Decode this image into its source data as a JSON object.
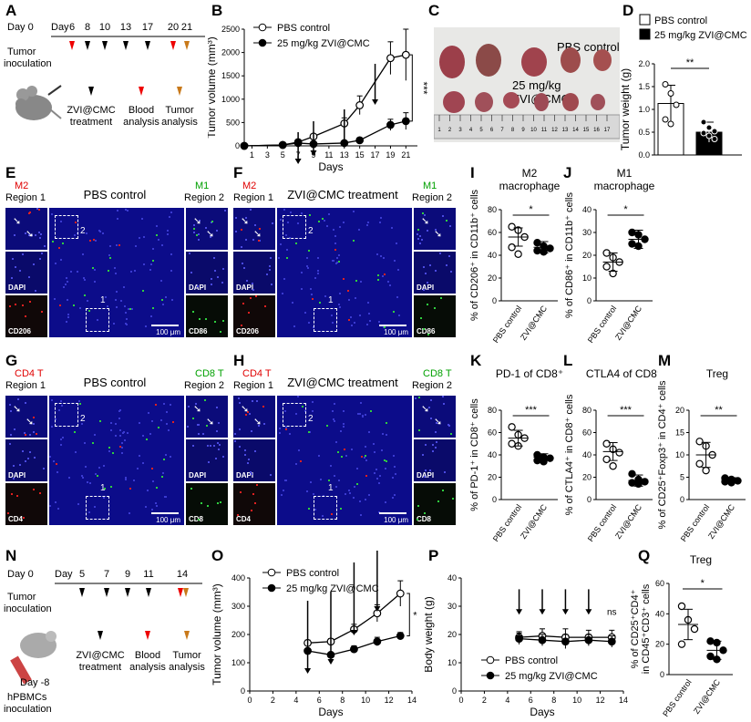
{
  "panels": {
    "A": "A",
    "B": "B",
    "C": "C",
    "D": "D",
    "E": "E",
    "F": "F",
    "G": "G",
    "H": "H",
    "I": "I",
    "J": "J",
    "K": "K",
    "L": "L",
    "M": "M",
    "N": "N",
    "O": "O",
    "P": "P",
    "Q": "Q"
  },
  "panelA": {
    "day0": "Day 0",
    "day_label": "Day",
    "days": [
      "6",
      "8",
      "10",
      "13",
      "17",
      "20",
      "21"
    ],
    "tumor_inoc": "Tumor\ninoculation",
    "legend": [
      "ZVI@CMC\ntreatment",
      "Blood\nanalysis",
      "Tumor\nanalysis"
    ]
  },
  "panelN": {
    "day0": "Day 0",
    "day_label": "Day",
    "days": [
      "5",
      "7",
      "9",
      "11",
      "14"
    ],
    "tumor_inoc": "Tumor\ninoculation",
    "day_minus": "Day -8",
    "hpbmc": "hPBMCs\ninoculation",
    "legend": [
      "ZVI@CMC\ntreatment",
      "Blood\nanalysis",
      "Tumor\nanalysis"
    ]
  },
  "panelC": {
    "label1": "PBS control",
    "label2": "25 mg/kg ZVI@CMC",
    "ruler_numbers": [
      "1",
      "2",
      "3",
      "4",
      "5",
      "6",
      "7",
      "8",
      "9",
      "10",
      "11",
      "12",
      "13",
      "14",
      "15",
      "16",
      "17"
    ]
  },
  "micro": {
    "E": {
      "title": "PBS control",
      "left": [
        "M2",
        "Region 1"
      ],
      "right": [
        "M1",
        "Region 2"
      ],
      "dapi": "DAPI",
      "cl": "CD206",
      "cr": "CD86",
      "scale": "100 μm",
      "r1": "1",
      "r2": "2"
    },
    "F": {
      "title": "ZVI@CMC treatment",
      "left": [
        "M2",
        "Region 1"
      ],
      "right": [
        "M1",
        "Region 2"
      ],
      "dapi": "DAPI",
      "cl": "CD206",
      "cr": "CD86",
      "scale": "100 μm",
      "r1": "1",
      "r2": "2"
    },
    "G": {
      "title": "PBS control",
      "left": [
        "CD4 T",
        "Region 1"
      ],
      "right": [
        "CD8 T",
        "Region 2"
      ],
      "dapi": "DAPI",
      "cl": "CD4",
      "cr": "CD8",
      "scale": "100 μm",
      "r1": "1",
      "r2": "2"
    },
    "H": {
      "title": "ZVI@CMC treatment",
      "left": [
        "CD4 T",
        "Region 1"
      ],
      "right": [
        "CD8 T",
        "Region 2"
      ],
      "dapi": "DAPI",
      "cl": "CD4",
      "cr": "CD8",
      "scale": "100 μm",
      "r1": "1",
      "r2": "2"
    }
  },
  "chart_data": [
    {
      "id": "B",
      "type": "line",
      "xlabel": "Days",
      "ylabel": "Tumor volume (mm³)",
      "xticks": [
        1,
        3,
        5,
        7,
        9,
        11,
        13,
        15,
        17,
        19,
        21
      ],
      "yticks": [
        0,
        500,
        1000,
        1500,
        2000,
        2500
      ],
      "xlim": [
        0,
        22.5
      ],
      "ylim": [
        0,
        2500
      ],
      "significance": "***",
      "arrows_at": [
        7,
        9,
        13,
        17
      ],
      "series": [
        {
          "name": "PBS control",
          "marker": "open",
          "x": [
            0,
            5,
            7,
            9,
            13,
            15,
            19,
            21
          ],
          "y": [
            0,
            20,
            80,
            200,
            480,
            870,
            1880,
            1950
          ],
          "err": [
            0,
            5,
            20,
            50,
            120,
            200,
            350,
            550
          ]
        },
        {
          "name": "25 mg/kg ZVI@CMC",
          "marker": "filled",
          "x": [
            0,
            5,
            7,
            9,
            13,
            15,
            19,
            21
          ],
          "y": [
            0,
            20,
            60,
            40,
            60,
            120,
            450,
            530
          ],
          "err": [
            0,
            5,
            15,
            10,
            20,
            40,
            120,
            180
          ]
        }
      ]
    },
    {
      "id": "D",
      "type": "bar",
      "ylabel": "Tumor weight (g)",
      "yticks": [
        0.0,
        0.5,
        1.0,
        1.5,
        2.0
      ],
      "ylim": [
        0,
        2.0
      ],
      "significance": "**",
      "legend": [
        "PBS control",
        "25 mg/kg ZVI@CMC"
      ],
      "bars": [
        {
          "name": "PBS control",
          "mean": 1.13,
          "err": 0.4,
          "points": [
            1.55,
            1.35,
            1.1,
            0.78,
            0.68
          ]
        },
        {
          "name": "25 mg/kg ZVI@CMC",
          "mean": 0.5,
          "err": 0.22,
          "points": [
            0.72,
            0.6,
            0.52,
            0.48,
            0.42,
            0.35
          ]
        }
      ]
    },
    {
      "id": "I",
      "type": "scatter",
      "title": [
        "M2",
        "macrophage"
      ],
      "ylabel": "% of CD206⁺ in CD11b⁺ cells",
      "yticks": [
        0,
        20,
        40,
        60,
        80
      ],
      "ylim": [
        0,
        80
      ],
      "significance": "*",
      "categories": [
        "PBS control",
        "ZVI@CMC"
      ],
      "groups": [
        {
          "points": [
            65,
            62,
            56,
            47,
            41
          ],
          "mean": 56,
          "err": 8
        },
        {
          "points": [
            51,
            48,
            46,
            44,
            43
          ],
          "mean": 47,
          "err": 5
        }
      ]
    },
    {
      "id": "J",
      "type": "scatter",
      "title": [
        "M1",
        "macrophage"
      ],
      "ylabel": "% of CD86⁺ in CD11b⁺ cells",
      "yticks": [
        0,
        10,
        20,
        30,
        40
      ],
      "ylim": [
        0,
        40
      ],
      "significance": "*",
      "categories": [
        "PBS control",
        "ZVI@CMC"
      ],
      "groups": [
        {
          "points": [
            21,
            19,
            17,
            15,
            12
          ],
          "mean": 17,
          "err": 4
        },
        {
          "points": [
            30,
            29,
            27,
            25,
            24
          ],
          "mean": 27,
          "err": 4
        }
      ]
    },
    {
      "id": "K",
      "type": "scatter",
      "title": [
        "PD-1 of CD8⁺"
      ],
      "ylabel": "% of PD-1⁺ in CD8⁺ cells",
      "yticks": [
        0,
        20,
        40,
        60,
        80
      ],
      "ylim": [
        0,
        80
      ],
      "significance": "***",
      "categories": [
        "PBS control",
        "ZVI@CMC"
      ],
      "groups": [
        {
          "points": [
            65,
            58,
            55,
            50,
            48
          ],
          "mean": 55,
          "err": 7
        },
        {
          "points": [
            40,
            38,
            37,
            35,
            34
          ],
          "mean": 38,
          "err": 3
        }
      ]
    },
    {
      "id": "L",
      "type": "scatter",
      "title": [
        "CTLA4 of CD8⁺"
      ],
      "ylabel": "% of CTLA4⁺ in CD8⁺ cells",
      "yticks": [
        0,
        20,
        40,
        60,
        80
      ],
      "ylim": [
        0,
        80
      ],
      "significance": "***",
      "categories": [
        "PBS control",
        "ZVI@CMC"
      ],
      "groups": [
        {
          "points": [
            50,
            45,
            42,
            36,
            30
          ],
          "mean": 43,
          "err": 8
        },
        {
          "points": [
            23,
            18,
            16,
            15,
            14
          ],
          "mean": 17,
          "err": 5
        }
      ]
    },
    {
      "id": "M",
      "type": "scatter",
      "title": [
        "Treg"
      ],
      "ylabel": "% of CD25⁺Foxp3⁺ in CD4⁺ cells",
      "yticks": [
        0,
        5,
        10,
        15,
        20
      ],
      "ylim": [
        0,
        20
      ],
      "significance": "**",
      "categories": [
        "PBS control",
        "ZVI@CMC"
      ],
      "groups": [
        {
          "points": [
            13,
            12,
            10,
            8,
            6.5
          ],
          "mean": 10,
          "err": 2.8
        },
        {
          "points": [
            4.8,
            4.5,
            4.2,
            4.0,
            3.8
          ],
          "mean": 4.3,
          "err": 0.6
        }
      ]
    },
    {
      "id": "O",
      "type": "line",
      "xlabel": "Days",
      "ylabel": "Tumor volume (mm³)",
      "xticks": [
        0,
        2,
        4,
        6,
        8,
        10,
        12,
        14
      ],
      "yticks": [
        0,
        100,
        200,
        300,
        400
      ],
      "xlim": [
        0,
        14
      ],
      "ylim": [
        0,
        400
      ],
      "significance": "*",
      "arrows_at": [
        5,
        7,
        9,
        11
      ],
      "series": [
        {
          "name": "PBS control",
          "marker": "open",
          "x": [
            5,
            7,
            9,
            11,
            13
          ],
          "y": [
            170,
            175,
            218,
            275,
            345
          ],
          "err": [
            10,
            10,
            18,
            30,
            45
          ]
        },
        {
          "name": "25 mg/kg ZVI@CMC",
          "marker": "filled",
          "x": [
            5,
            7,
            9,
            11,
            13
          ],
          "y": [
            142,
            128,
            148,
            175,
            195
          ],
          "err": [
            8,
            8,
            12,
            15,
            12
          ]
        }
      ]
    },
    {
      "id": "P",
      "type": "line",
      "xlabel": "Days",
      "ylabel": "Body weight (g)",
      "xticks": [
        0,
        2,
        4,
        6,
        8,
        10,
        12,
        14
      ],
      "yticks": [
        0,
        10,
        20,
        30,
        40
      ],
      "xlim": [
        0,
        14
      ],
      "ylim": [
        0,
        40
      ],
      "significance": "ns",
      "arrows_at": [
        5,
        7,
        9,
        11
      ],
      "series": [
        {
          "name": "PBS control",
          "marker": "open",
          "x": [
            5,
            7,
            9,
            11,
            13
          ],
          "y": [
            19,
            19.5,
            19,
            19,
            19
          ],
          "err": [
            2,
            2.5,
            3,
            2.5,
            2.5
          ]
        },
        {
          "name": "25 mg/kg ZVI@CMC",
          "marker": "filled",
          "x": [
            5,
            7,
            9,
            11,
            13
          ],
          "y": [
            18.5,
            18,
            17.5,
            18,
            17.5
          ],
          "err": [
            2,
            2,
            2.5,
            2,
            2
          ]
        }
      ]
    },
    {
      "id": "Q",
      "type": "scatter",
      "title": [
        "Treg"
      ],
      "ylabel": "% of CD25⁺CD4⁺ in CD45⁺CD3⁺ cells",
      "yticks": [
        0,
        20,
        40,
        60
      ],
      "ylim": [
        0,
        60
      ],
      "significance": "*",
      "categories": [
        "PBS control",
        "ZVI@CMC"
      ],
      "groups": [
        {
          "points": [
            45,
            36,
            30,
            20
          ],
          "mean": 33,
          "err": 10
        },
        {
          "points": [
            22,
            21,
            16,
            12,
            10
          ],
          "mean": 16,
          "err": 6
        }
      ]
    }
  ]
}
